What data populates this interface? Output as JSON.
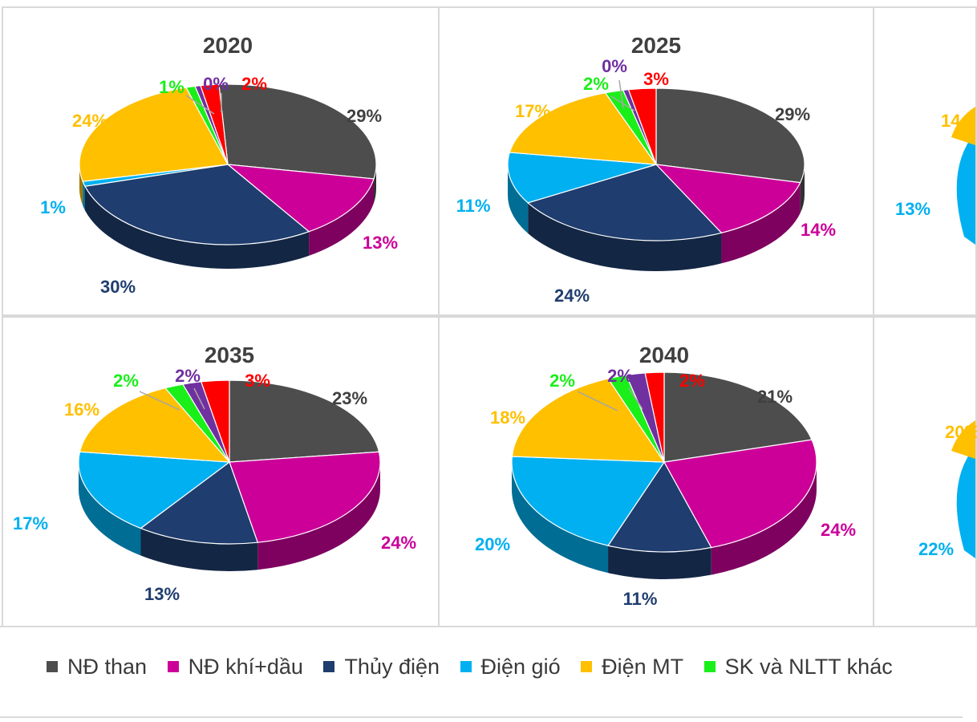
{
  "legend": [
    {
      "label": "NĐ than",
      "color": "#4d4d4d"
    },
    {
      "label": "NĐ khí+dầu",
      "color": "#cc0099"
    },
    {
      "label": "Thủy điện",
      "color": "#1f3d6e"
    },
    {
      "label": "Điện gió",
      "color": "#00b0f0"
    },
    {
      "label": "Điện MT",
      "color": "#ffc000"
    },
    {
      "label": "SK và NLTT khác",
      "color": "#1aef1a"
    }
  ],
  "chart_data": [
    {
      "type": "pie",
      "title": "2020",
      "categories": [
        "NĐ than",
        "NĐ khí+dầu",
        "Thủy điện",
        "Điện gió",
        "Điện MT",
        "SK và NLTT khác",
        "",
        ""
      ],
      "values": [
        29,
        13,
        30,
        1,
        24,
        1,
        0,
        2
      ],
      "labels": [
        "29%",
        "13%",
        "30%",
        "1%",
        "24%",
        "1%",
        "0%",
        "2%"
      ],
      "colors": [
        "#4d4d4d",
        "#cc0099",
        "#1f3d6e",
        "#00b0f0",
        "#ffc000",
        "#1aef1a",
        "#7030a0",
        "#ff0000"
      ]
    },
    {
      "type": "pie",
      "title": "2025",
      "categories": [
        "NĐ than",
        "NĐ khí+dầu",
        "Thủy điện",
        "Điện gió",
        "Điện MT",
        "SK và NLTT khác",
        "",
        ""
      ],
      "values": [
        29,
        14,
        24,
        11,
        17,
        2,
        0,
        3
      ],
      "labels": [
        "29%",
        "14%",
        "24%",
        "11%",
        "17%",
        "2%",
        "0%",
        "3%"
      ],
      "colors": [
        "#4d4d4d",
        "#cc0099",
        "#1f3d6e",
        "#00b0f0",
        "#ffc000",
        "#1aef1a",
        "#7030a0",
        "#ff0000"
      ]
    },
    {
      "type": "pie",
      "title": "",
      "categories": [
        "",
        "",
        "",
        "Điện gió",
        "Điện MT",
        "",
        "",
        ""
      ],
      "values": [
        null,
        null,
        null,
        13,
        14,
        null,
        null,
        null
      ],
      "labels": [
        "",
        "",
        "",
        "13%",
        "14",
        "",
        "",
        ""
      ],
      "colors": [
        "#4d4d4d",
        "#cc0099",
        "#1f3d6e",
        "#00b0f0",
        "#ffc000",
        "#1aef1a",
        "#7030a0",
        "#ff0000"
      ]
    },
    {
      "type": "pie",
      "title": "2035",
      "categories": [
        "NĐ than",
        "NĐ khí+dầu",
        "Thủy điện",
        "Điện gió",
        "Điện MT",
        "SK và NLTT khác",
        "",
        ""
      ],
      "values": [
        23,
        24,
        13,
        17,
        16,
        2,
        2,
        3
      ],
      "labels": [
        "23%",
        "24%",
        "13%",
        "17%",
        "16%",
        "2%",
        "2%",
        "3%"
      ],
      "colors": [
        "#4d4d4d",
        "#cc0099",
        "#1f3d6e",
        "#00b0f0",
        "#ffc000",
        "#1aef1a",
        "#7030a0",
        "#ff0000"
      ]
    },
    {
      "type": "pie",
      "title": "2040",
      "categories": [
        "NĐ than",
        "NĐ khí+dầu",
        "Thủy điện",
        "Điện gió",
        "Điện MT",
        "SK và NLTT khác",
        "",
        ""
      ],
      "values": [
        21,
        24,
        11,
        20,
        18,
        2,
        2,
        2
      ],
      "labels": [
        "21%",
        "24%",
        "11%",
        "20%",
        "18%",
        "2%",
        "2%",
        "2%"
      ],
      "colors": [
        "#4d4d4d",
        "#cc0099",
        "#1f3d6e",
        "#00b0f0",
        "#ffc000",
        "#1aef1a",
        "#7030a0",
        "#ff0000"
      ]
    },
    {
      "type": "pie",
      "title": "",
      "categories": [
        "",
        "",
        "",
        "Điện gió",
        "Điện MT",
        "",
        "",
        ""
      ],
      "values": [
        null,
        null,
        null,
        22,
        20,
        null,
        null,
        null
      ],
      "labels": [
        "",
        "",
        "",
        "22%",
        "20%",
        "",
        "",
        ""
      ],
      "colors": [
        "#4d4d4d",
        "#cc0099",
        "#1f3d6e",
        "#00b0f0",
        "#ffc000",
        "#1aef1a",
        "#7030a0",
        "#ff0000"
      ]
    }
  ]
}
